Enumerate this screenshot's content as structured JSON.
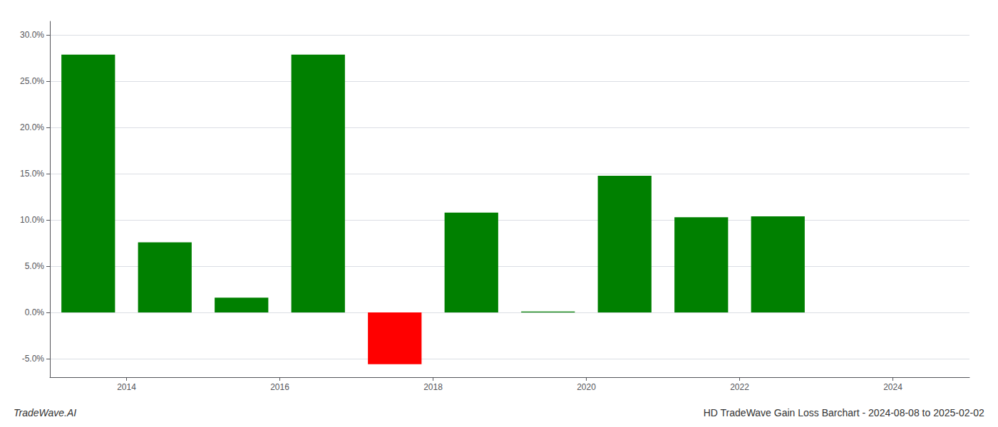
{
  "chart_data": {
    "type": "bar",
    "title": "HD TradeWave Gain Loss Barchart - 2024-08-08 to 2025-02-02",
    "annotations": [
      "TradeWave.AI"
    ],
    "x": [
      2013.5,
      2014.5,
      2015.5,
      2016.5,
      2017.5,
      2018.5,
      2019.5,
      2020.5,
      2021.5,
      2022.5
    ],
    "values": [
      0.279,
      0.076,
      0.016,
      0.279,
      -0.056,
      0.108,
      0.001,
      0.148,
      0.103,
      0.104
    ],
    "colors": [
      "#008000",
      "#008000",
      "#008000",
      "#008000",
      "#ff0000",
      "#008000",
      "#008000",
      "#008000",
      "#008000",
      "#008000"
    ],
    "xlim": [
      2013.0,
      2025.0
    ],
    "xticks": [
      2014,
      2016,
      2018,
      2020,
      2022,
      2024
    ],
    "ylim": [
      -0.07,
      0.315
    ],
    "yticks": [
      {
        "value": -0.05,
        "label": "-5.0%"
      },
      {
        "value": 0.0,
        "label": "0.0%"
      },
      {
        "value": 0.05,
        "label": "5.0%"
      },
      {
        "value": 0.1,
        "label": "10.0%"
      },
      {
        "value": 0.15,
        "label": "15.0%"
      },
      {
        "value": 0.2,
        "label": "20.0%"
      },
      {
        "value": 0.25,
        "label": "25.0%"
      },
      {
        "value": 0.3,
        "label": "30.0%"
      }
    ],
    "grid": true
  }
}
